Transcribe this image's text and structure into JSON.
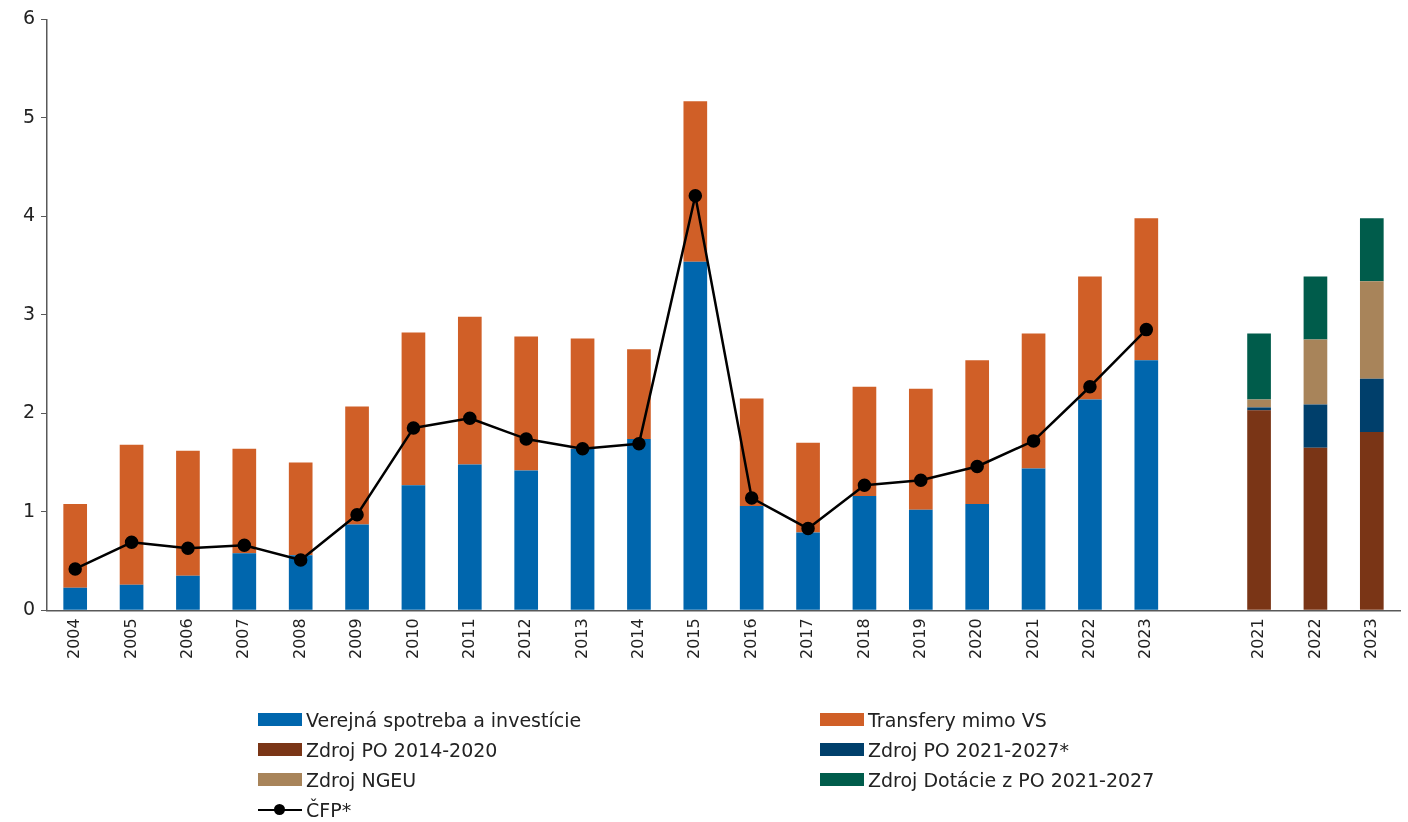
{
  "chart_data": {
    "type": "bar",
    "stacked": true,
    "grid": false,
    "legend": "bottom",
    "categories": [
      "2004",
      "2005",
      "2006",
      "2007",
      "2008",
      "2009",
      "2010",
      "2011",
      "2012",
      "2013",
      "2014",
      "2015",
      "2016",
      "2017",
      "2018",
      "2019",
      "2020",
      "2021",
      "2022",
      "2023",
      null,
      "2021",
      "2022",
      "2023"
    ],
    "ylim": [
      0,
      6
    ],
    "yticks": [
      0,
      1,
      2,
      3,
      4,
      5,
      6
    ],
    "series": [
      {
        "name": "Verejná spotreba a investície",
        "color": "#0066ad",
        "values": [
          0.23,
          0.26,
          0.35,
          0.58,
          0.56,
          0.87,
          1.27,
          1.48,
          1.42,
          1.64,
          1.74,
          3.54,
          1.06,
          0.79,
          1.16,
          1.02,
          1.08,
          1.44,
          2.14,
          2.54,
          null,
          null,
          null,
          null
        ]
      },
      {
        "name": "Transfery mimo VS",
        "color": "#d05f27",
        "values": [
          0.85,
          1.42,
          1.27,
          1.06,
          0.94,
          1.2,
          1.55,
          1.5,
          1.36,
          1.12,
          0.91,
          1.63,
          1.09,
          0.91,
          1.11,
          1.23,
          1.46,
          1.37,
          1.25,
          1.44,
          null,
          null,
          null,
          null
        ]
      },
      {
        "name": "Zdroj PO 2014-2020",
        "color": "#7a3516",
        "values": [
          null,
          null,
          null,
          null,
          null,
          null,
          null,
          null,
          null,
          null,
          null,
          null,
          null,
          null,
          null,
          null,
          null,
          null,
          null,
          null,
          null,
          2.03,
          1.65,
          1.81
        ]
      },
      {
        "name": "Zdroj PO 2021-2027*",
        "color": "#003f6b",
        "values": [
          null,
          null,
          null,
          null,
          null,
          null,
          null,
          null,
          null,
          null,
          null,
          null,
          null,
          null,
          null,
          null,
          null,
          null,
          null,
          null,
          null,
          0.03,
          0.44,
          0.54
        ]
      },
      {
        "name": "Zdroj NGEU",
        "color": "#a8845a",
        "values": [
          null,
          null,
          null,
          null,
          null,
          null,
          null,
          null,
          null,
          null,
          null,
          null,
          null,
          null,
          null,
          null,
          null,
          null,
          null,
          null,
          null,
          0.08,
          0.66,
          0.99
        ]
      },
      {
        "name": "Zdroj Dotácie z PO 2021-2027",
        "color": "#005c4b",
        "values": [
          null,
          null,
          null,
          null,
          null,
          null,
          null,
          null,
          null,
          null,
          null,
          null,
          null,
          null,
          null,
          null,
          null,
          null,
          null,
          null,
          null,
          0.67,
          0.64,
          0.64
        ]
      },
      {
        "name": "ČFP*",
        "type": "line",
        "color": "#000000",
        "marker": "circle",
        "values": [
          0.42,
          0.69,
          0.63,
          0.66,
          0.51,
          0.97,
          1.85,
          1.95,
          1.74,
          1.64,
          1.69,
          4.21,
          1.14,
          0.83,
          1.27,
          1.32,
          1.46,
          1.72,
          2.27,
          2.85,
          null,
          null,
          null,
          null
        ]
      }
    ]
  }
}
